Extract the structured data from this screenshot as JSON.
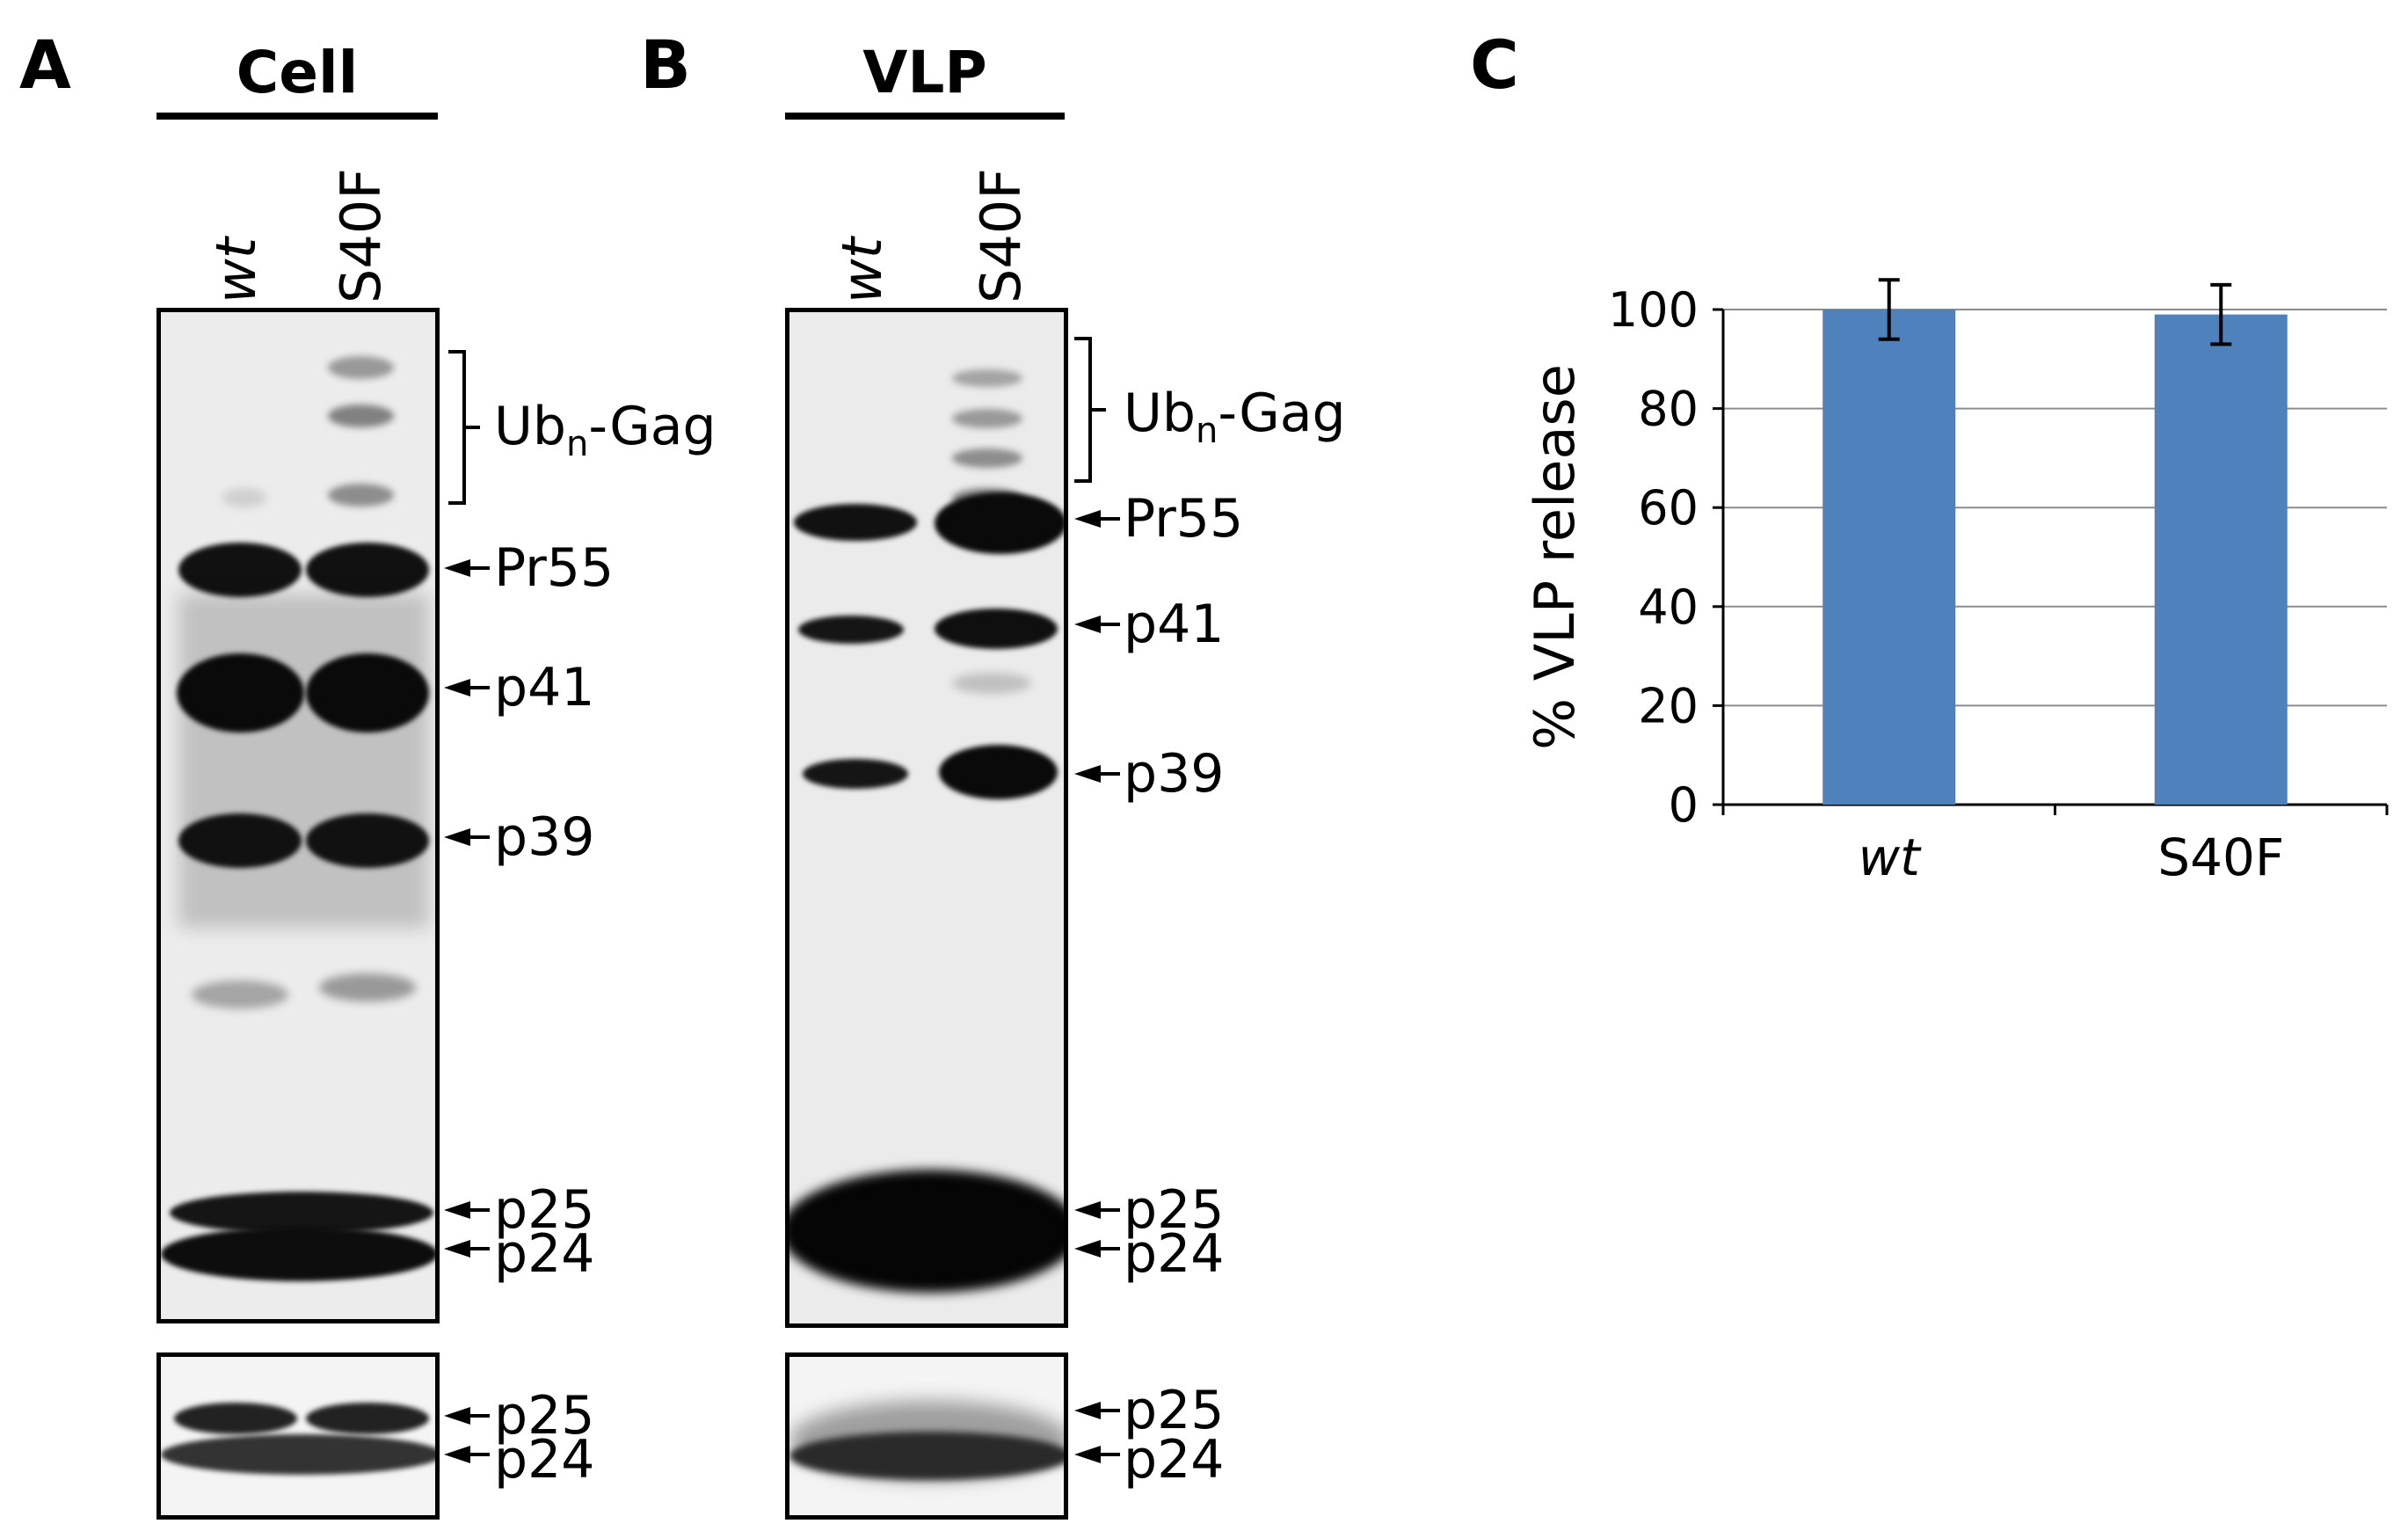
{
  "panels": [
    {
      "letter": "A",
      "group": "Cell",
      "lanes": [
        {
          "label": "wt",
          "italic": true
        },
        {
          "label": "S40F",
          "italic": false
        }
      ],
      "main_markers": [
        {
          "pre": "Ub",
          "sub": "n",
          "post": "-Gag",
          "bracket": true
        },
        {
          "text": "Pr55"
        },
        {
          "text": "p41"
        },
        {
          "text": "p39"
        },
        {
          "text": "p25"
        },
        {
          "text": "p24"
        }
      ],
      "small_markers": [
        {
          "text": "p25"
        },
        {
          "text": "p24"
        }
      ]
    },
    {
      "letter": "B",
      "group": "VLP",
      "lanes": [
        {
          "label": "wt",
          "italic": true
        },
        {
          "label": "S40F",
          "italic": false
        }
      ],
      "main_markers": [
        {
          "pre": "Ub",
          "sub": "n",
          "post": "-Gag",
          "bracket": true
        },
        {
          "text": "Pr55"
        },
        {
          "text": "p41"
        },
        {
          "text": "p39"
        },
        {
          "text": "p25"
        },
        {
          "text": "p24"
        }
      ],
      "small_markers": [
        {
          "text": "p25"
        },
        {
          "text": "p24"
        }
      ]
    }
  ],
  "panel_c": {
    "letter": "C"
  },
  "chart_data": {
    "type": "bar",
    "categories": [
      "wt",
      "S40F"
    ],
    "category_italic": [
      true,
      false
    ],
    "values": [
      100,
      99
    ],
    "errors": [
      6,
      6
    ],
    "ylabel": "% VLP release",
    "ylim": [
      0,
      100
    ],
    "yticks": [
      0,
      20,
      40,
      60,
      80,
      100
    ],
    "bar_color": "#4f81bd",
    "grid": true
  }
}
